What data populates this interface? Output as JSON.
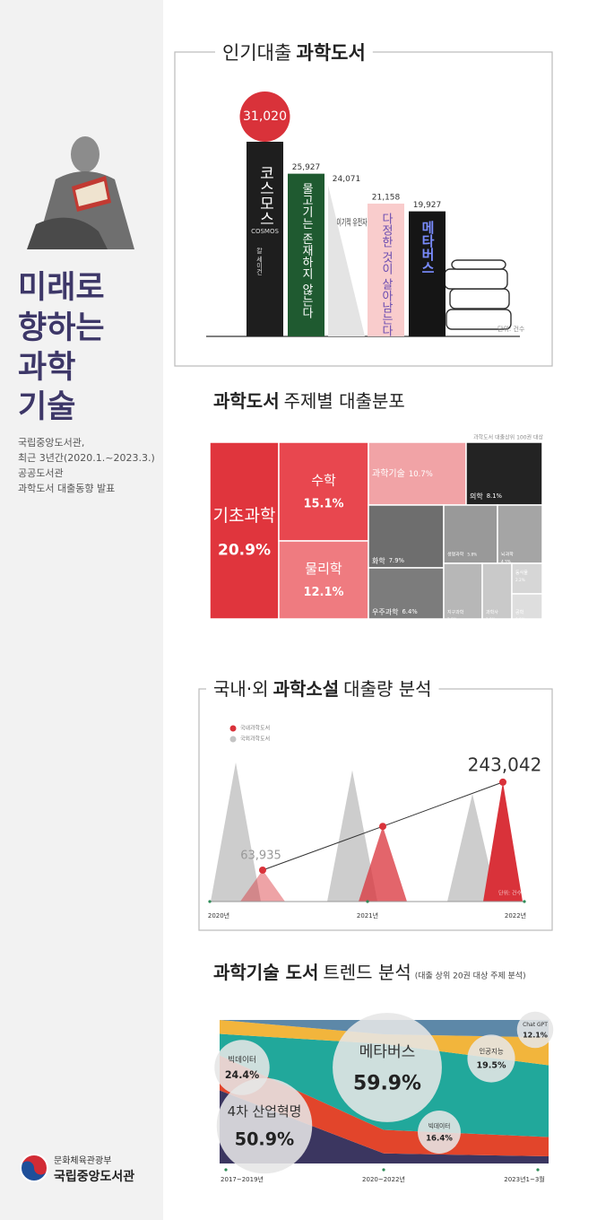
{
  "sidebar": {
    "headline": [
      "미래로",
      "향하는",
      "과학",
      "기술"
    ],
    "description": [
      "국립중앙도서관,",
      "최근 3년간(2020.1.~2023.3.)",
      "공공도서관",
      "과학도서 대출동향 발표"
    ],
    "logo": {
      "ministry": "문화체육관광부",
      "library": "국립중앙도서관"
    }
  },
  "chart_data": [
    {
      "type": "bar",
      "title_parts": [
        "인기대출",
        "과학도서"
      ],
      "title_bold": [
        false,
        true
      ],
      "categories": [
        "코스모스",
        "물고기는 존재하지 않는다",
        "이기적 유전자",
        "다정한 것이 살아남는다",
        "메타버스"
      ],
      "values": [
        31020,
        25927,
        24071,
        21158,
        19927
      ],
      "value_labels": [
        "31,020",
        "25,927",
        "24,071",
        "21,158",
        "19,927"
      ],
      "colors": [
        "#1e1e1e",
        "#1f5a30",
        "#e4e4e4",
        "#f9cccc",
        "#151515"
      ],
      "label_colors": [
        "#ffffff",
        "#ffffff",
        "#333333",
        "#6a4bb0",
        "#7a8cff"
      ],
      "cover_texts": [
        "COSMOS",
        "칼 세이건"
      ],
      "highlight_color": "#d9323a",
      "note": "단위: 건수"
    },
    {
      "type": "treemap",
      "title_parts": [
        "과학도서",
        "주제별 대출분포"
      ],
      "title_bold": [
        true,
        false
      ],
      "note": "과학도서 대출상위 100권 대상",
      "categories": [
        "기초과학",
        "수학",
        "물리학",
        "과학기술",
        "의학",
        "화학",
        "우주과학",
        "생명과학",
        "뇌과학",
        "지구과학",
        "과학사",
        "동식물",
        "공학"
      ],
      "values": [
        20.9,
        15.1,
        12.1,
        10.7,
        8.1,
        7.9,
        6.4,
        5.8,
        4.3,
        2.8,
        1.9,
        2.2,
        0.9
      ],
      "value_labels": [
        "20.9%",
        "15.1%",
        "12.1%",
        "10.7%",
        "8.1%",
        "7.9%",
        "6.4%",
        "5.8%",
        "4.3%",
        "2.8%",
        "1.9%",
        "2.2%",
        "0.9%"
      ],
      "colors": [
        "#e0353d",
        "#e8474f",
        "#ef7b80",
        "#f1a3a6",
        "#232323",
        "#6e6e6e",
        "#7c7c7c",
        "#999999",
        "#a5a5a5",
        "#b7b7b7",
        "#c9c9c9",
        "#d6d6d6",
        "#dedede"
      ]
    },
    {
      "type": "line",
      "title_parts": [
        "국내·외",
        "과학소설",
        "대출량 분석"
      ],
      "title_bold": [
        false,
        true,
        false
      ],
      "categories": [
        "2020년",
        "2021년",
        "2022년"
      ],
      "series": [
        {
          "name": "국내과학도서",
          "color": "#d9323a",
          "values": [
            63935,
            153000,
            243042
          ],
          "value_labels": [
            "63,935",
            null,
            "243,042"
          ]
        },
        {
          "name": "국외과학도서",
          "color": "#c4c4c4",
          "values": [
            283000,
            267000,
            219000
          ]
        }
      ],
      "note": "단위: 건수"
    },
    {
      "type": "area",
      "title_parts": [
        "과학기술 도서",
        "트렌드 분석"
      ],
      "title_bold": [
        true,
        false
      ],
      "subtitle": "(대출 상위 20권 대상 주제 분석)",
      "categories": [
        "2017~2019년",
        "2020~2022년",
        "2023년1~3월"
      ],
      "ylim": [
        0,
        100
      ],
      "series": [
        {
          "name": "4차 산업혁명",
          "color": "#3b3660",
          "values": [
            50.9,
            7.0,
            5.0
          ],
          "value_labels": [
            "50.9%",
            null,
            null
          ]
        },
        {
          "name": "빅데이터",
          "color": "#e2452b",
          "values": [
            24.4,
            16.4,
            13.4
          ],
          "value_labels": [
            "24.4%",
            "16.4%",
            null
          ]
        },
        {
          "name": "메타버스",
          "color": "#21a89b",
          "values": [
            15.0,
            59.9,
            50.0
          ],
          "value_labels": [
            null,
            "59.9%",
            null
          ]
        },
        {
          "name": "인공지능",
          "color": "#f2b53c",
          "values": [
            9.7,
            6.7,
            19.5
          ],
          "value_labels": [
            null,
            null,
            "19.5%"
          ]
        },
        {
          "name": "Chat GPT",
          "color": "#5d88a8",
          "values": [
            0,
            10.0,
            12.1
          ],
          "value_labels": [
            null,
            null,
            "12.1%"
          ]
        }
      ]
    }
  ]
}
